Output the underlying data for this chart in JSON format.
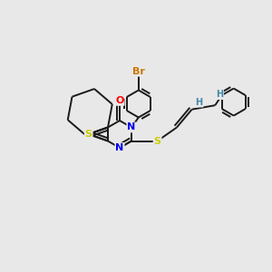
{
  "background_color": "#e8e8e8",
  "bond_color": "#1a1a1a",
  "atom_colors": {
    "S": "#cccc00",
    "N": "#0000ee",
    "O": "#ff0000",
    "Br": "#cc7700",
    "H_vinyl": "#4488aa",
    "C": "#1a1a1a"
  },
  "figsize": [
    3.0,
    3.0
  ],
  "dpi": 100
}
